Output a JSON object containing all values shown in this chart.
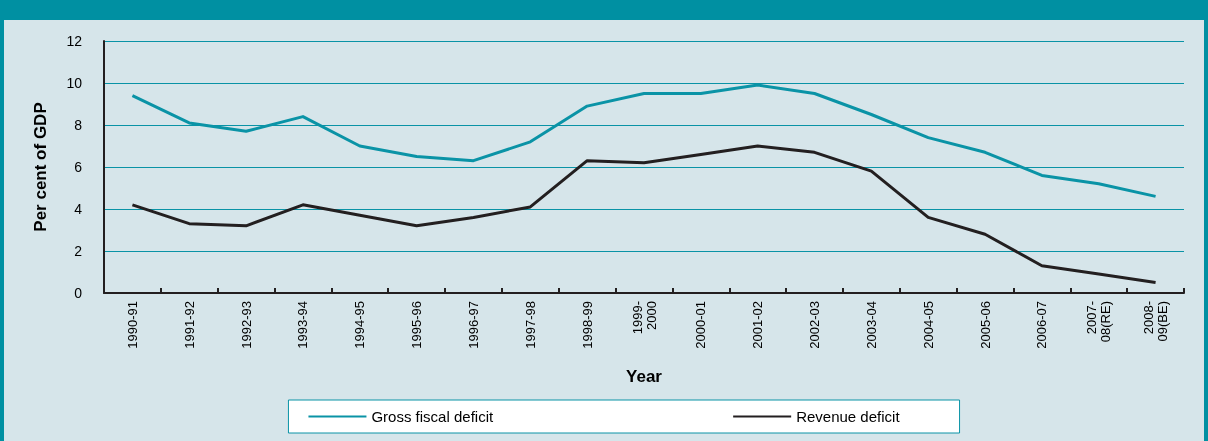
{
  "chart_data": {
    "type": "line",
    "xlabel": "Year",
    "ylabel": "Per cent of GDP",
    "categories": [
      "1990-91",
      "1991-92",
      "1992-93",
      "1993-94",
      "1994-95",
      "1995-96",
      "1996-97",
      "1997-98",
      "1998-99",
      "1999-2000",
      "2000-01",
      "2001-02",
      "2002-03",
      "2003-04",
      "2004-05",
      "2005-06",
      "2006-07",
      "2007-08(RE)",
      "2008-09(BE)"
    ],
    "series": [
      {
        "name": "Gross fiscal deficit",
        "color": "#0a93a6",
        "values": [
          9.4,
          8.1,
          7.7,
          8.4,
          7.0,
          6.5,
          6.3,
          7.2,
          8.9,
          9.5,
          9.5,
          9.9,
          9.5,
          8.5,
          7.4,
          6.7,
          5.6,
          5.2,
          4.6
        ]
      },
      {
        "name": "Revenue deficit",
        "color": "#231f20",
        "values": [
          4.2,
          3.3,
          3.2,
          4.2,
          3.7,
          3.2,
          3.6,
          4.1,
          6.3,
          6.2,
          6.6,
          7.0,
          6.7,
          5.8,
          3.6,
          2.8,
          1.3,
          0.9,
          0.5
        ]
      }
    ],
    "ylim": [
      0,
      12
    ],
    "yticks": [
      0,
      2,
      4,
      6,
      8,
      10,
      12
    ],
    "grid": "y",
    "legend": "bottom",
    "marker": "none",
    "line_style": "solid"
  }
}
